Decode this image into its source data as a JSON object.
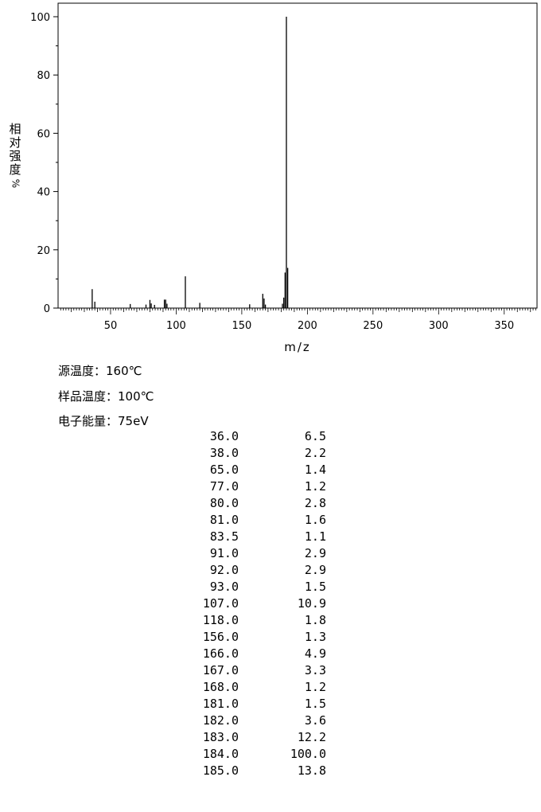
{
  "chart_data": {
    "type": "bar",
    "xlabel": "m/z",
    "ylabel": [
      "相",
      "对",
      "强",
      "度",
      "%"
    ],
    "xlim": [
      10,
      375
    ],
    "ylim": [
      0,
      100
    ],
    "x_ticks": [
      50,
      100,
      150,
      200,
      250,
      300,
      350
    ],
    "y_ticks": [
      0,
      20,
      40,
      60,
      80,
      100
    ],
    "peaks": [
      {
        "mz": 36.0,
        "intensity": 6.5
      },
      {
        "mz": 38.0,
        "intensity": 2.2
      },
      {
        "mz": 65.0,
        "intensity": 1.4
      },
      {
        "mz": 77.0,
        "intensity": 1.2
      },
      {
        "mz": 80.0,
        "intensity": 2.8
      },
      {
        "mz": 81.0,
        "intensity": 1.6
      },
      {
        "mz": 83.5,
        "intensity": 1.1
      },
      {
        "mz": 91.0,
        "intensity": 2.9
      },
      {
        "mz": 92.0,
        "intensity": 2.9
      },
      {
        "mz": 93.0,
        "intensity": 1.5
      },
      {
        "mz": 107.0,
        "intensity": 10.9
      },
      {
        "mz": 118.0,
        "intensity": 1.8
      },
      {
        "mz": 156.0,
        "intensity": 1.3
      },
      {
        "mz": 166.0,
        "intensity": 4.9
      },
      {
        "mz": 167.0,
        "intensity": 3.3
      },
      {
        "mz": 168.0,
        "intensity": 1.2
      },
      {
        "mz": 181.0,
        "intensity": 1.5
      },
      {
        "mz": 182.0,
        "intensity": 3.6
      },
      {
        "mz": 183.0,
        "intensity": 12.2
      },
      {
        "mz": 184.0,
        "intensity": 100.0
      },
      {
        "mz": 185.0,
        "intensity": 13.8
      }
    ]
  },
  "conditions": {
    "source_temp": "源温度：160℃",
    "sample_temp": "样品温度：100℃",
    "electron_energy": "电子能量：75eV"
  },
  "peak_table": [
    [
      "36.0",
      "6.5"
    ],
    [
      "38.0",
      "2.2"
    ],
    [
      "65.0",
      "1.4"
    ],
    [
      "77.0",
      "1.2"
    ],
    [
      "80.0",
      "2.8"
    ],
    [
      "81.0",
      "1.6"
    ],
    [
      "83.5",
      "1.1"
    ],
    [
      "91.0",
      "2.9"
    ],
    [
      "92.0",
      "2.9"
    ],
    [
      "93.0",
      "1.5"
    ],
    [
      "107.0",
      "10.9"
    ],
    [
      "118.0",
      "1.8"
    ],
    [
      "156.0",
      "1.3"
    ],
    [
      "166.0",
      "4.9"
    ],
    [
      "167.0",
      "3.3"
    ],
    [
      "168.0",
      "1.2"
    ],
    [
      "181.0",
      "1.5"
    ],
    [
      "182.0",
      "3.6"
    ],
    [
      "183.0",
      "12.2"
    ],
    [
      "184.0",
      "100.0"
    ],
    [
      "185.0",
      "13.8"
    ]
  ]
}
